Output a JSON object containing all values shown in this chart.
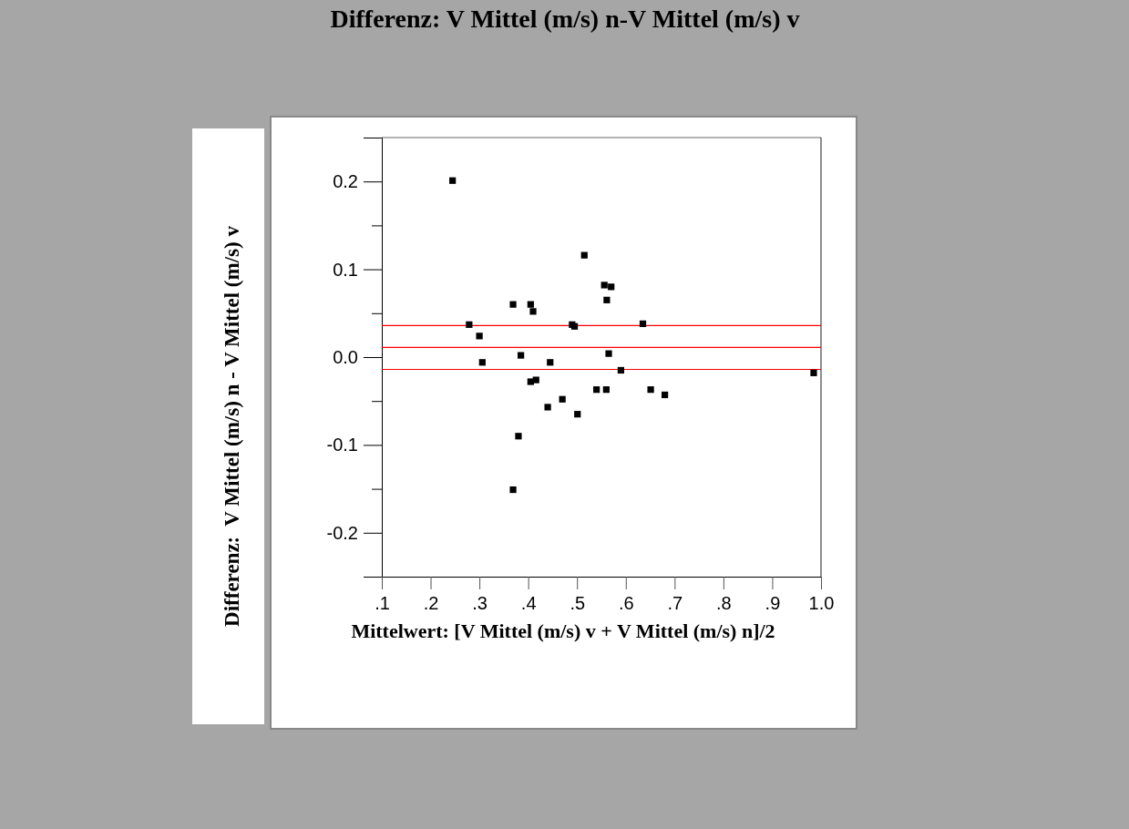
{
  "chart_data": {
    "type": "scatter",
    "title": "Differenz: V Mittel (m/s) n-V Mittel (m/s) v",
    "xlabel": "Mittelwert: [V Mittel (m/s) v + V Mittel (m/s) n]/2",
    "ylabel": "Differenz:  V Mittel (m/s) n - V Mittel (m/s) v",
    "x": [
      0.245,
      0.279,
      0.3,
      0.306,
      0.369,
      0.385,
      0.405,
      0.41,
      0.445,
      0.49,
      0.495,
      0.515,
      0.556,
      0.57,
      0.561,
      0.565,
      0.405,
      0.416,
      0.44,
      0.47,
      0.501,
      0.54,
      0.56,
      0.38,
      0.369,
      0.59,
      0.635,
      0.651,
      0.68,
      0.985
    ],
    "values": [
      0.201,
      0.037,
      0.024,
      -0.006,
      0.06,
      0.002,
      0.06,
      0.052,
      -0.006,
      0.037,
      0.035,
      0.116,
      0.082,
      0.08,
      0.065,
      0.004,
      -0.028,
      -0.026,
      -0.057,
      -0.048,
      -0.065,
      -0.037,
      -0.037,
      -0.09,
      -0.151,
      -0.015,
      0.038,
      -0.037,
      -0.043,
      -0.018
    ],
    "color": "#000000",
    "marker": "square",
    "grid": false,
    "xlim": [
      0.1,
      1.0
    ],
    "ylim": [
      -0.25,
      0.25
    ],
    "xticks": [
      {
        "value": 0.1,
        "label": ".1"
      },
      {
        "value": 0.2,
        "label": ".2"
      },
      {
        "value": 0.3,
        "label": ".3"
      },
      {
        "value": 0.4,
        "label": ".4"
      },
      {
        "value": 0.5,
        "label": ".5"
      },
      {
        "value": 0.6,
        "label": ".6"
      },
      {
        "value": 0.7,
        "label": ".7"
      },
      {
        "value": 0.8,
        "label": ".8"
      },
      {
        "value": 0.9,
        "label": ".9"
      },
      {
        "value": 1.0,
        "label": "1.0"
      }
    ],
    "yticks": [
      {
        "value": -0.2,
        "label": "-0.2"
      },
      {
        "value": -0.15,
        "label": null
      },
      {
        "value": -0.1,
        "label": "-0.1"
      },
      {
        "value": -0.05,
        "label": null
      },
      {
        "value": 0,
        "label": "0.0"
      },
      {
        "value": 0.05,
        "label": null
      },
      {
        "value": 0.1,
        "label": "0.1"
      },
      {
        "value": 0.15,
        "label": null
      },
      {
        "value": 0.2,
        "label": "0.2"
      },
      {
        "value": 0.25,
        "label": null
      }
    ],
    "ref_lines": [
      {
        "axis": "y",
        "value": 0.036,
        "color": "#ff0000"
      },
      {
        "axis": "y",
        "value": 0.011,
        "color": "#ff0000"
      },
      {
        "axis": "y",
        "value": -0.014,
        "color": "#ff0000"
      }
    ]
  }
}
